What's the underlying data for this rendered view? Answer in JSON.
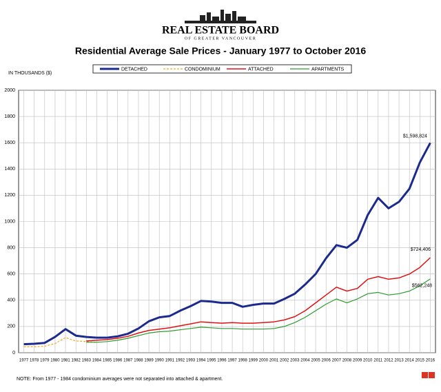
{
  "header": {
    "org": "REAL ESTATE BOARD",
    "org_sub": "OF GREATER VANCOUVER"
  },
  "chart_data": {
    "type": "line",
    "title": "Residential Average Sale Prices  -  January 1977 to October 2016",
    "y_label": "IN THOUSANDS ($)",
    "note": "NOTE:  From 1977 - 1984 condominium averages were not separated into attached & apartment.",
    "x": [
      1977,
      1978,
      1979,
      1980,
      1981,
      1982,
      1983,
      1984,
      1985,
      1986,
      1987,
      1988,
      1989,
      1990,
      1991,
      1992,
      1993,
      1994,
      1995,
      1996,
      1997,
      1998,
      1999,
      2000,
      2001,
      2002,
      2003,
      2004,
      2005,
      2006,
      2007,
      2008,
      2009,
      2010,
      2011,
      2012,
      2013,
      2014,
      2015,
      2016
    ],
    "xlim": [
      1976.5,
      2016.5
    ],
    "xticks": [
      1977,
      1978,
      1979,
      1980,
      1981,
      1982,
      1983,
      1984,
      1985,
      1986,
      1987,
      1988,
      1989,
      1990,
      1991,
      1992,
      1993,
      1994,
      1995,
      1996,
      1997,
      1998,
      1999,
      2000,
      2001,
      2002,
      2003,
      2004,
      2005,
      2006,
      2007,
      2008,
      2009,
      2010,
      2011,
      2012,
      2013,
      2014,
      2015,
      2016
    ],
    "ylim": [
      0,
      2000
    ],
    "yticks": [
      0,
      200,
      400,
      600,
      800,
      1000,
      1200,
      1400,
      1600,
      1800,
      2000
    ],
    "grid": true,
    "series": [
      {
        "name": "DETACHED",
        "color": "#1b2a8c",
        "width": 3,
        "values": [
          65,
          68,
          75,
          120,
          180,
          130,
          120,
          115,
          115,
          125,
          145,
          185,
          240,
          270,
          280,
          320,
          355,
          395,
          390,
          380,
          380,
          350,
          365,
          375,
          375,
          410,
          450,
          520,
          600,
          720,
          820,
          800,
          860,
          1050,
          1180,
          1100,
          1150,
          1250,
          1450,
          1598.824
        ],
        "value_labels": [
          null,
          null,
          null,
          null,
          null,
          null,
          null,
          null,
          null,
          null,
          null,
          null,
          null,
          null,
          null,
          null,
          null,
          null,
          null,
          null,
          null,
          null,
          null,
          null,
          null,
          null,
          null,
          null,
          null,
          null,
          null,
          null,
          null,
          null,
          null,
          null,
          null,
          null,
          null,
          "$1,598,824"
        ]
      },
      {
        "name": "CONDOMINIUM",
        "color": "#f5a623",
        "width": 1.2,
        "dashed": true,
        "values": [
          45,
          45,
          50,
          70,
          115,
          90,
          85,
          80,
          null,
          null,
          null,
          null,
          null,
          null,
          null,
          null,
          null,
          null,
          null,
          null,
          null,
          null,
          null,
          null,
          null,
          null,
          null,
          null,
          null,
          null,
          null,
          null,
          null,
          null,
          null,
          null,
          null,
          null,
          null,
          null
        ]
      },
      {
        "name": "ATTACHED",
        "color": "#e01010",
        "width": 1.5,
        "values": [
          null,
          null,
          null,
          null,
          null,
          null,
          90,
          95,
          100,
          110,
          125,
          150,
          170,
          180,
          190,
          205,
          220,
          235,
          230,
          225,
          230,
          225,
          225,
          230,
          235,
          250,
          275,
          320,
          380,
          440,
          500,
          470,
          490,
          560,
          580,
          560,
          570,
          600,
          650,
          724.406
        ],
        "value_labels": [
          null,
          null,
          null,
          null,
          null,
          null,
          null,
          null,
          null,
          null,
          null,
          null,
          null,
          null,
          null,
          null,
          null,
          null,
          null,
          null,
          null,
          null,
          null,
          null,
          null,
          null,
          null,
          null,
          null,
          null,
          null,
          null,
          null,
          null,
          null,
          null,
          null,
          null,
          null,
          "$724,406"
        ]
      },
      {
        "name": "APARTMENTS",
        "color": "#2e9a2e",
        "width": 1.2,
        "values": [
          null,
          null,
          null,
          null,
          null,
          null,
          80,
          80,
          85,
          95,
          110,
          130,
          150,
          160,
          165,
          175,
          185,
          195,
          190,
          185,
          185,
          180,
          180,
          180,
          185,
          200,
          230,
          270,
          320,
          370,
          410,
          380,
          410,
          450,
          460,
          440,
          450,
          470,
          510,
          562.248
        ],
        "value_labels": [
          null,
          null,
          null,
          null,
          null,
          null,
          null,
          null,
          null,
          null,
          null,
          null,
          null,
          null,
          null,
          null,
          null,
          null,
          null,
          null,
          null,
          null,
          null,
          null,
          null,
          null,
          null,
          null,
          null,
          null,
          null,
          null,
          null,
          null,
          null,
          null,
          null,
          null,
          null,
          "$562,248"
        ]
      }
    ]
  }
}
